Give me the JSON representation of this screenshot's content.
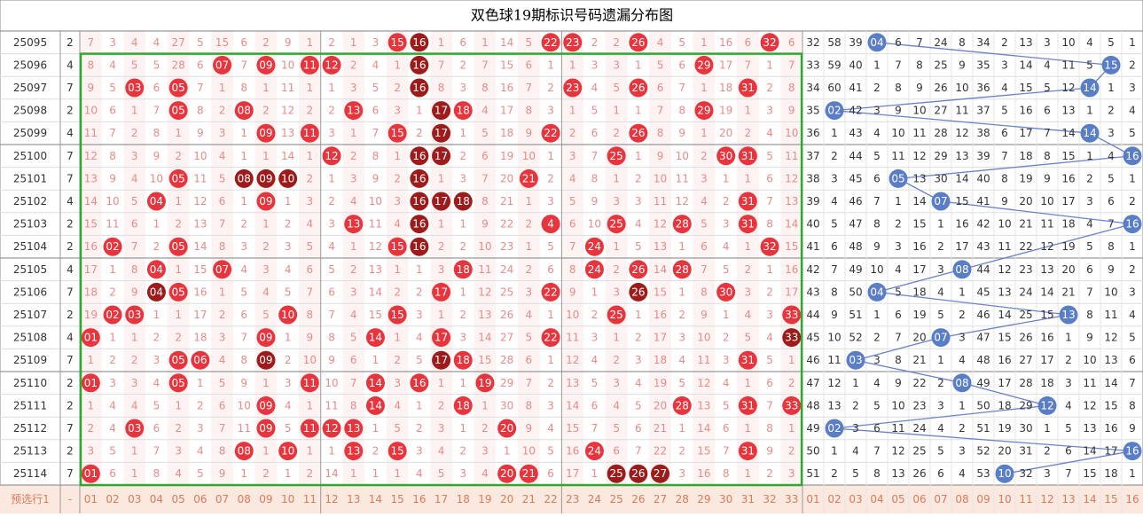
{
  "title": "双色球19期标识号码遗漏分布图",
  "rows": [
    {
      "period": "25095",
      "digit": "2",
      "red": [
        "7",
        "3",
        "4",
        "4",
        "27",
        "5",
        "15",
        "6",
        "2",
        "9",
        "1",
        "2",
        "1",
        "3",
        "15",
        "16",
        "1",
        "6",
        "1",
        "14",
        "5",
        "22",
        "23",
        "2",
        "2",
        "26",
        "4",
        "5",
        "1",
        "16",
        "6",
        "32",
        "6"
      ],
      "red_balls": [
        15,
        16,
        22,
        23,
        26,
        32
      ],
      "dark_balls": [
        16
      ],
      "blue": [
        "32",
        "58",
        "39",
        "04",
        "6",
        "7",
        "24",
        "8",
        "34",
        "2",
        "13",
        "3",
        "10",
        "4",
        "5",
        "1"
      ],
      "blue_ball": 4
    },
    {
      "period": "25096",
      "digit": "4",
      "red": [
        "8",
        "4",
        "5",
        "5",
        "28",
        "6",
        "07",
        "7",
        "09",
        "10",
        "11",
        "12",
        "2",
        "4",
        "1",
        "16",
        "7",
        "2",
        "7",
        "15",
        "6",
        "1",
        "1",
        "3",
        "3",
        "1",
        "5",
        "6",
        "29",
        "17",
        "7",
        "1",
        "7"
      ],
      "red_balls": [
        7,
        9,
        11,
        12,
        16,
        29
      ],
      "dark_balls": [
        16
      ],
      "blue": [
        "33",
        "59",
        "40",
        "1",
        "7",
        "8",
        "25",
        "9",
        "35",
        "3",
        "14",
        "4",
        "11",
        "5",
        "15",
        "2"
      ],
      "blue_ball": 15
    },
    {
      "period": "25097",
      "digit": "7",
      "red": [
        "9",
        "5",
        "03",
        "6",
        "05",
        "7",
        "1",
        "8",
        "1",
        "11",
        "1",
        "1",
        "3",
        "5",
        "2",
        "16",
        "8",
        "3",
        "8",
        "16",
        "7",
        "2",
        "23",
        "4",
        "5",
        "26",
        "6",
        "7",
        "1",
        "18",
        "31",
        "2",
        "8"
      ],
      "red_balls": [
        3,
        5,
        16,
        23,
        26,
        31
      ],
      "dark_balls": [
        16
      ],
      "blue": [
        "34",
        "60",
        "41",
        "2",
        "8",
        "9",
        "26",
        "10",
        "36",
        "4",
        "15",
        "5",
        "12",
        "14",
        "1",
        "3"
      ],
      "blue_ball": 14
    },
    {
      "period": "25098",
      "digit": "2",
      "red": [
        "10",
        "6",
        "1",
        "7",
        "05",
        "8",
        "2",
        "08",
        "2",
        "12",
        "2",
        "2",
        "13",
        "6",
        "3",
        "1",
        "17",
        "18",
        "4",
        "17",
        "8",
        "3",
        "1",
        "5",
        "1",
        "1",
        "7",
        "8",
        "29",
        "19",
        "1",
        "3",
        "9"
      ],
      "red_balls": [
        5,
        8,
        13,
        17,
        18,
        29
      ],
      "dark_balls": [
        17
      ],
      "blue": [
        "35",
        "02",
        "42",
        "3",
        "9",
        "10",
        "27",
        "11",
        "37",
        "5",
        "16",
        "6",
        "13",
        "1",
        "2",
        "4"
      ],
      "blue_ball": 2
    },
    {
      "period": "25099",
      "digit": "4",
      "red": [
        "11",
        "7",
        "2",
        "8",
        "1",
        "9",
        "3",
        "1",
        "09",
        "13",
        "11",
        "3",
        "1",
        "7",
        "15",
        "2",
        "17",
        "1",
        "5",
        "18",
        "9",
        "22",
        "2",
        "6",
        "2",
        "26",
        "8",
        "9",
        "1",
        "20",
        "2",
        "4",
        "10"
      ],
      "red_balls": [
        9,
        11,
        15,
        17,
        22,
        26
      ],
      "dark_balls": [
        17
      ],
      "blue": [
        "36",
        "1",
        "43",
        "4",
        "10",
        "11",
        "28",
        "12",
        "38",
        "6",
        "17",
        "7",
        "14",
        "14",
        "3",
        "5"
      ],
      "blue_ball": 14
    },
    {
      "period": "25100",
      "digit": "7",
      "red": [
        "12",
        "8",
        "3",
        "9",
        "2",
        "10",
        "4",
        "1",
        "1",
        "14",
        "1",
        "12",
        "2",
        "8",
        "1",
        "16",
        "17",
        "2",
        "6",
        "19",
        "10",
        "1",
        "3",
        "7",
        "25",
        "1",
        "9",
        "10",
        "2",
        "30",
        "31",
        "5",
        "11"
      ],
      "red_balls": [
        12,
        16,
        17,
        25,
        30,
        31
      ],
      "dark_balls": [
        16,
        17
      ],
      "blue": [
        "37",
        "2",
        "44",
        "5",
        "11",
        "12",
        "29",
        "13",
        "39",
        "7",
        "18",
        "8",
        "15",
        "1",
        "4",
        "16"
      ],
      "blue_ball": 16
    },
    {
      "period": "25101",
      "digit": "7",
      "red": [
        "13",
        "9",
        "4",
        "10",
        "05",
        "11",
        "5",
        "08",
        "09",
        "10",
        "2",
        "1",
        "3",
        "9",
        "2",
        "16",
        "1",
        "3",
        "7",
        "20",
        "21",
        "2",
        "4",
        "8",
        "1",
        "2",
        "10",
        "11",
        "3",
        "1",
        "1",
        "6",
        "12"
      ],
      "red_balls": [
        5,
        8,
        9,
        10,
        16,
        21
      ],
      "dark_balls": [
        8,
        9,
        10,
        16
      ],
      "blue": [
        "38",
        "3",
        "45",
        "6",
        "05",
        "13",
        "30",
        "14",
        "40",
        "8",
        "19",
        "9",
        "16",
        "2",
        "5",
        "1"
      ],
      "blue_ball": 5
    },
    {
      "period": "25102",
      "digit": "4",
      "red": [
        "14",
        "10",
        "5",
        "04",
        "1",
        "12",
        "6",
        "1",
        "09",
        "1",
        "3",
        "2",
        "4",
        "10",
        "3",
        "16",
        "17",
        "18",
        "8",
        "21",
        "1",
        "3",
        "5",
        "9",
        "3",
        "3",
        "11",
        "12",
        "4",
        "2",
        "31",
        "7",
        "13"
      ],
      "red_balls": [
        4,
        9,
        16,
        17,
        18,
        31
      ],
      "dark_balls": [
        16,
        17,
        18
      ],
      "blue": [
        "39",
        "4",
        "46",
        "7",
        "1",
        "14",
        "07",
        "15",
        "41",
        "9",
        "20",
        "10",
        "17",
        "3",
        "6",
        "2"
      ],
      "blue_ball": 7
    },
    {
      "period": "25103",
      "digit": "2",
      "red": [
        "15",
        "11",
        "6",
        "1",
        "2",
        "13",
        "7",
        "2",
        "1",
        "2",
        "4",
        "3",
        "13",
        "11",
        "4",
        "16",
        "1",
        "1",
        "9",
        "22",
        "2",
        "4",
        "6",
        "10",
        "25",
        "4",
        "12",
        "28",
        "5",
        "3",
        "31",
        "8",
        "14"
      ],
      "red_balls": [
        13,
        16,
        22,
        25,
        28,
        31
      ],
      "dark_balls": [
        16
      ],
      "blue": [
        "40",
        "5",
        "47",
        "8",
        "2",
        "15",
        "1",
        "16",
        "42",
        "10",
        "21",
        "11",
        "18",
        "4",
        "7",
        "16"
      ],
      "blue_ball": 16
    },
    {
      "period": "25104",
      "digit": "2",
      "red": [
        "16",
        "02",
        "7",
        "2",
        "05",
        "14",
        "8",
        "3",
        "2",
        "3",
        "5",
        "4",
        "1",
        "12",
        "15",
        "16",
        "2",
        "2",
        "10",
        "23",
        "1",
        "5",
        "7",
        "24",
        "1",
        "5",
        "13",
        "1",
        "6",
        "4",
        "1",
        "32",
        "15"
      ],
      "red_balls": [
        2,
        5,
        15,
        16,
        24,
        32
      ],
      "dark_balls": [
        16
      ],
      "blue": [
        "41",
        "6",
        "48",
        "9",
        "3",
        "16",
        "2",
        "17",
        "43",
        "11",
        "22",
        "12",
        "19",
        "5",
        "8",
        "1"
      ],
      "blue_ball": 0
    },
    {
      "period": "25105",
      "digit": "4",
      "red": [
        "17",
        "1",
        "8",
        "04",
        "1",
        "15",
        "07",
        "4",
        "3",
        "4",
        "6",
        "5",
        "2",
        "13",
        "1",
        "1",
        "3",
        "18",
        "11",
        "24",
        "2",
        "6",
        "8",
        "24",
        "2",
        "26",
        "14",
        "28",
        "7",
        "5",
        "2",
        "1",
        "16"
      ],
      "red_balls": [
        4,
        7,
        18,
        24,
        26,
        28
      ],
      "dark_balls": [],
      "blue": [
        "42",
        "7",
        "49",
        "10",
        "4",
        "17",
        "3",
        "08",
        "44",
        "12",
        "23",
        "13",
        "20",
        "6",
        "9",
        "2"
      ],
      "blue_ball": 8
    },
    {
      "period": "25106",
      "digit": "7",
      "red": [
        "18",
        "2",
        "9",
        "04",
        "05",
        "16",
        "1",
        "5",
        "4",
        "5",
        "7",
        "6",
        "3",
        "14",
        "2",
        "2",
        "17",
        "1",
        "12",
        "25",
        "3",
        "22",
        "9",
        "1",
        "3",
        "26",
        "15",
        "1",
        "8",
        "30",
        "3",
        "2",
        "17"
      ],
      "red_balls": [
        4,
        5,
        17,
        22,
        26,
        30
      ],
      "dark_balls": [
        4,
        26
      ],
      "blue": [
        "43",
        "8",
        "50",
        "04",
        "5",
        "18",
        "4",
        "1",
        "45",
        "13",
        "24",
        "14",
        "21",
        "7",
        "10",
        "3"
      ],
      "blue_ball": 4
    },
    {
      "period": "25107",
      "digit": "2",
      "red": [
        "19",
        "02",
        "03",
        "1",
        "1",
        "17",
        "2",
        "6",
        "5",
        "10",
        "8",
        "7",
        "4",
        "15",
        "15",
        "3",
        "1",
        "2",
        "13",
        "26",
        "4",
        "1",
        "10",
        "2",
        "25",
        "1",
        "16",
        "2",
        "9",
        "1",
        "4",
        "3",
        "33"
      ],
      "red_balls": [
        2,
        3,
        10,
        15,
        25,
        33
      ],
      "dark_balls": [],
      "blue": [
        "44",
        "9",
        "51",
        "1",
        "6",
        "19",
        "5",
        "2",
        "46",
        "14",
        "25",
        "15",
        "13",
        "8",
        "11",
        "4"
      ],
      "blue_ball": 13
    },
    {
      "period": "25108",
      "digit": "4",
      "red": [
        "01",
        "1",
        "1",
        "2",
        "2",
        "18",
        "3",
        "7",
        "09",
        "1",
        "9",
        "8",
        "5",
        "14",
        "1",
        "4",
        "17",
        "3",
        "14",
        "27",
        "5",
        "22",
        "11",
        "3",
        "1",
        "2",
        "17",
        "3",
        "10",
        "2",
        "5",
        "4",
        "33"
      ],
      "red_balls": [
        1,
        9,
        14,
        17,
        22,
        33
      ],
      "dark_balls": [
        33
      ],
      "blue": [
        "45",
        "10",
        "52",
        "2",
        "7",
        "20",
        "07",
        "3",
        "47",
        "15",
        "26",
        "16",
        "1",
        "9",
        "12",
        "5"
      ],
      "blue_ball": 7
    },
    {
      "period": "25109",
      "digit": "7",
      "red": [
        "1",
        "2",
        "2",
        "3",
        "05",
        "06",
        "4",
        "8",
        "09",
        "2",
        "10",
        "9",
        "6",
        "1",
        "2",
        "5",
        "17",
        "18",
        "15",
        "28",
        "6",
        "1",
        "12",
        "4",
        "2",
        "3",
        "18",
        "4",
        "11",
        "3",
        "31",
        "5",
        "1"
      ],
      "red_balls": [
        5,
        6,
        9,
        17,
        18,
        31
      ],
      "dark_balls": [
        9,
        17
      ],
      "blue": [
        "46",
        "11",
        "03",
        "3",
        "8",
        "21",
        "1",
        "4",
        "48",
        "16",
        "27",
        "17",
        "2",
        "10",
        "13",
        "6"
      ],
      "blue_ball": 3
    },
    {
      "period": "25110",
      "digit": "2",
      "red": [
        "01",
        "3",
        "3",
        "4",
        "05",
        "1",
        "5",
        "9",
        "1",
        "3",
        "11",
        "10",
        "7",
        "14",
        "3",
        "16",
        "1",
        "1",
        "19",
        "29",
        "7",
        "2",
        "13",
        "5",
        "3",
        "4",
        "19",
        "5",
        "12",
        "4",
        "1",
        "6",
        "2"
      ],
      "red_balls": [
        1,
        5,
        11,
        14,
        16,
        19
      ],
      "dark_balls": [],
      "blue": [
        "47",
        "12",
        "1",
        "4",
        "9",
        "22",
        "2",
        "08",
        "49",
        "17",
        "28",
        "18",
        "3",
        "11",
        "14",
        "7"
      ],
      "blue_ball": 8
    },
    {
      "period": "25111",
      "digit": "2",
      "red": [
        "1",
        "4",
        "4",
        "5",
        "1",
        "2",
        "6",
        "10",
        "09",
        "4",
        "1",
        "11",
        "8",
        "14",
        "4",
        "1",
        "2",
        "18",
        "1",
        "30",
        "8",
        "3",
        "14",
        "6",
        "4",
        "5",
        "20",
        "28",
        "13",
        "5",
        "31",
        "7",
        "33"
      ],
      "red_balls": [
        9,
        14,
        18,
        28,
        31,
        33
      ],
      "dark_balls": [],
      "blue": [
        "48",
        "13",
        "2",
        "5",
        "10",
        "23",
        "3",
        "1",
        "50",
        "18",
        "29",
        "12",
        "4",
        "12",
        "15",
        "8"
      ],
      "blue_ball": 12
    },
    {
      "period": "25112",
      "digit": "7",
      "red": [
        "2",
        "4",
        "03",
        "6",
        "2",
        "3",
        "7",
        "11",
        "09",
        "5",
        "11",
        "12",
        "13",
        "1",
        "5",
        "2",
        "3",
        "1",
        "2",
        "20",
        "9",
        "4",
        "15",
        "7",
        "5",
        "6",
        "21",
        "1",
        "14",
        "6",
        "1",
        "8",
        "1"
      ],
      "red_balls": [
        3,
        9,
        11,
        12,
        13,
        20
      ],
      "dark_balls": [],
      "blue": [
        "49",
        "02",
        "3",
        "6",
        "11",
        "24",
        "4",
        "2",
        "51",
        "19",
        "30",
        "1",
        "5",
        "13",
        "16",
        "9"
      ],
      "blue_ball": 2
    },
    {
      "period": "25113",
      "digit": "2",
      "red": [
        "3",
        "5",
        "1",
        "7",
        "3",
        "4",
        "8",
        "08",
        "1",
        "10",
        "1",
        "1",
        "13",
        "2",
        "15",
        "3",
        "4",
        "2",
        "3",
        "1",
        "10",
        "5",
        "16",
        "24",
        "6",
        "7",
        "22",
        "2",
        "15",
        "7",
        "31",
        "9",
        "2"
      ],
      "red_balls": [
        8,
        10,
        13,
        15,
        24,
        31
      ],
      "dark_balls": [],
      "blue": [
        "50",
        "1",
        "4",
        "7",
        "12",
        "25",
        "5",
        "3",
        "52",
        "20",
        "31",
        "2",
        "6",
        "14",
        "17",
        "16"
      ],
      "blue_ball": 16
    },
    {
      "period": "25114",
      "digit": "7",
      "red": [
        "01",
        "6",
        "1",
        "8",
        "4",
        "5",
        "9",
        "1",
        "2",
        "1",
        "2",
        "14",
        "1",
        "1",
        "1",
        "4",
        "5",
        "3",
        "4",
        "20",
        "21",
        "6",
        "17",
        "1",
        "25",
        "26",
        "27",
        "3",
        "16",
        "8",
        "1",
        "2",
        "3"
      ],
      "red_balls": [
        1,
        20,
        21,
        25,
        26,
        27
      ],
      "dark_balls": [
        25,
        26,
        27
      ],
      "blue": [
        "51",
        "2",
        "5",
        "8",
        "13",
        "26",
        "6",
        "4",
        "53",
        "10",
        "32",
        "3",
        "7",
        "15",
        "18",
        "1"
      ],
      "blue_ball": 10
    }
  ],
  "footer": {
    "label": "预选行1",
    "digit": "-",
    "red": [
      "01",
      "02",
      "03",
      "04",
      "05",
      "06",
      "07",
      "08",
      "09",
      "10",
      "11",
      "12",
      "13",
      "14",
      "15",
      "16",
      "17",
      "18",
      "19",
      "20",
      "21",
      "22",
      "23",
      "24",
      "25",
      "26",
      "27",
      "28",
      "29",
      "30",
      "31",
      "32",
      "33"
    ],
    "blue": [
      "01",
      "02",
      "03",
      "04",
      "05",
      "06",
      "07",
      "08",
      "09",
      "10",
      "11",
      "12",
      "13",
      "14",
      "15",
      "16"
    ]
  }
}
